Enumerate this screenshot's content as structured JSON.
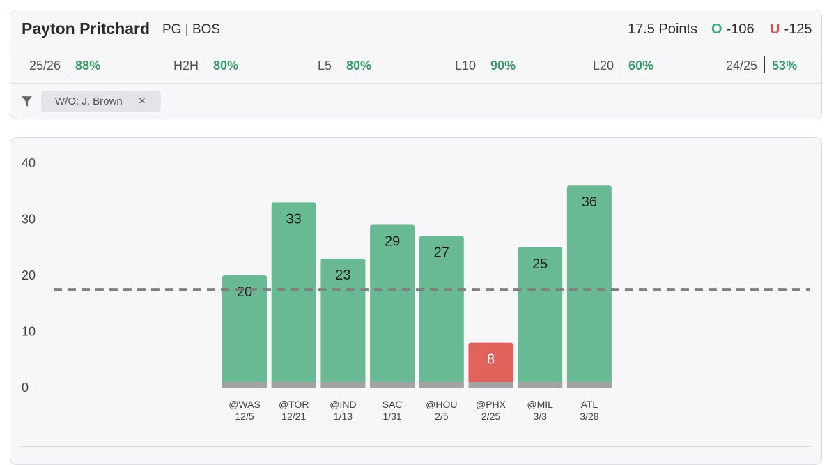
{
  "header": {
    "player_name": "Payton Pritchard",
    "player_meta": "PG | BOS",
    "prop_line": "17.5 Points",
    "over": {
      "letter": "O",
      "odds": "-106"
    },
    "under": {
      "letter": "U",
      "odds": "-125"
    }
  },
  "stats": [
    {
      "label": "25/26",
      "value": "88%"
    },
    {
      "label": "H2H",
      "value": "80%"
    },
    {
      "label": "L5",
      "value": "80%"
    },
    {
      "label": "L10",
      "value": "90%"
    },
    {
      "label": "L20",
      "value": "60%"
    },
    {
      "label": "24/25",
      "value": "53%"
    }
  ],
  "filter": {
    "chip_label": "W/O: J. Brown",
    "chip_close": "×"
  },
  "colors": {
    "over": "#6ab995",
    "under": "#e0625a",
    "base": "#a3a3a3",
    "line": "#808080"
  },
  "chart_data": {
    "type": "bar",
    "title": "",
    "xlabel": "",
    "ylabel": "",
    "ylim": [
      0,
      40
    ],
    "yticks": [
      0,
      10,
      20,
      30,
      40
    ],
    "threshold": 17.5,
    "categories": [
      {
        "opp": "@WAS",
        "date": "12/5"
      },
      {
        "opp": "@TOR",
        "date": "12/21"
      },
      {
        "opp": "@IND",
        "date": "1/13"
      },
      {
        "opp": "SAC",
        "date": "1/31"
      },
      {
        "opp": "@HOU",
        "date": "2/5"
      },
      {
        "opp": "@PHX",
        "date": "2/25"
      },
      {
        "opp": "@MIL",
        "date": "3/3"
      },
      {
        "opp": "ATL",
        "date": "3/28"
      }
    ],
    "values": [
      20,
      33,
      23,
      29,
      27,
      8,
      25,
      36
    ]
  }
}
